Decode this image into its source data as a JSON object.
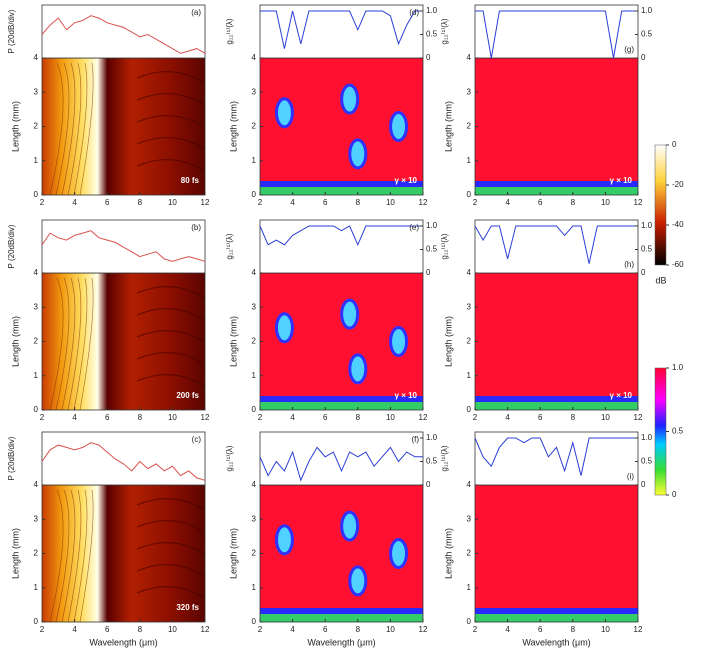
{
  "chart_data": [
    {
      "type": "spectrogram",
      "letter": "(a)",
      "annotation": "80 fs",
      "top_ylabel": "P (20dB/div)",
      "ylabel": "Length (mm)",
      "color": "#d9534f",
      "x": [
        2,
        2.5,
        3,
        3.5,
        4,
        4.5,
        5,
        5.5,
        6,
        6.5,
        7,
        7.5,
        8,
        8.5,
        9,
        9.5,
        10,
        10.5,
        11,
        11.5,
        12
      ],
      "values": [
        0.5,
        0.7,
        0.85,
        0.6,
        0.75,
        0.8,
        0.9,
        0.85,
        0.75,
        0.7,
        0.65,
        0.55,
        0.45,
        0.5,
        0.4,
        0.3,
        0.2,
        0.1,
        0.15,
        0.2,
        0.1
      ],
      "top_ylim": [
        0,
        1
      ],
      "xlim": [
        2,
        12
      ],
      "xticks": [
        2,
        4,
        6,
        8,
        10,
        12
      ],
      "ylim": [
        0,
        4
      ],
      "yticks": [
        0,
        1,
        2,
        3,
        4
      ]
    },
    {
      "type": "coherence",
      "letter": "(d)",
      "annotation": "γ × 10",
      "top_ylabel": "g₁₂⁽¹⁾(λ)",
      "ylabel": "Length (mm)",
      "color": "#2b3fd6",
      "x": [
        2,
        2.5,
        3,
        3.5,
        4,
        4.5,
        5,
        5.5,
        6,
        6.5,
        7,
        7.5,
        8,
        8.5,
        9,
        9.5,
        10,
        10.5,
        11,
        11.5,
        12
      ],
      "values": [
        1,
        1,
        1,
        0.2,
        1,
        0.3,
        1,
        1,
        1,
        1,
        1,
        1,
        0.6,
        1,
        1,
        1,
        0.9,
        0.3,
        0.7,
        1,
        1
      ],
      "top_ylim": [
        0,
        1
      ],
      "top_yticks": [
        0,
        0.5,
        {
          "value": 1,
          "label": "1.0"
        }
      ],
      "xlim": [
        2,
        12
      ],
      "xticks": [
        2,
        4,
        6,
        8,
        10,
        12
      ],
      "ylim": [
        0,
        4
      ],
      "yticks": [
        0,
        1,
        2,
        3,
        4
      ]
    },
    {
      "type": "coherence",
      "letter": "(g)",
      "annotation": "γ × 10",
      "top_ylabel": "g₁₂⁽¹⁾(λ)",
      "ylabel": "Length (mm)",
      "color": "#2b3fd6",
      "x": [
        2,
        2.5,
        3,
        3.5,
        4,
        4.5,
        5,
        5.5,
        6,
        6.5,
        7,
        7.5,
        8,
        8.5,
        9,
        9.5,
        10,
        10.5,
        11,
        11.5,
        12
      ],
      "values": [
        1,
        1,
        0,
        1,
        1,
        1,
        1,
        1,
        1,
        1,
        1,
        1,
        1,
        1,
        1,
        1,
        1,
        0,
        1,
        1,
        1
      ],
      "top_ylim": [
        0,
        1
      ],
      "top_yticks": [
        0,
        0.5,
        {
          "value": 1,
          "label": "1.0"
        }
      ],
      "xlim": [
        2,
        12
      ],
      "xticks": [
        2,
        4,
        6,
        8,
        10,
        12
      ],
      "ylim": [
        0,
        4
      ],
      "yticks": [
        0,
        1,
        2,
        3,
        4
      ]
    },
    {
      "type": "spectrogram",
      "letter": "(b)",
      "annotation": "200 fs",
      "top_ylabel": "P (20dB/div)",
      "ylabel": "Length (mm)",
      "color": "#d9534f",
      "x": [
        2,
        2.5,
        3,
        3.5,
        4,
        4.5,
        5,
        5.5,
        6,
        6.5,
        7,
        7.5,
        8,
        8.5,
        9,
        9.5,
        10,
        10.5,
        11,
        11.5,
        12
      ],
      "values": [
        0.6,
        0.85,
        0.75,
        0.7,
        0.8,
        0.85,
        0.9,
        0.75,
        0.7,
        0.65,
        0.55,
        0.45,
        0.35,
        0.4,
        0.45,
        0.3,
        0.25,
        0.3,
        0.35,
        0.3,
        0.25
      ],
      "top_ylim": [
        0,
        1
      ],
      "xlim": [
        2,
        12
      ],
      "xticks": [
        2,
        4,
        6,
        8,
        10,
        12
      ],
      "ylim": [
        0,
        4
      ],
      "yticks": [
        0,
        1,
        2,
        3,
        4
      ]
    },
    {
      "type": "coherence",
      "letter": "(e)",
      "annotation": "γ × 10",
      "top_ylabel": "g₁₂⁽¹⁾(λ)",
      "ylabel": "Length (mm)",
      "color": "#2b3fd6",
      "x": [
        2,
        2.5,
        3,
        3.5,
        4,
        4.5,
        5,
        5.5,
        6,
        6.5,
        7,
        7.5,
        8,
        8.5,
        9,
        9.5,
        10,
        10.5,
        11,
        11.5,
        12
      ],
      "values": [
        1,
        0.6,
        0.7,
        0.6,
        0.8,
        0.9,
        1,
        1,
        1,
        1,
        0.9,
        1,
        0.6,
        1,
        1,
        1,
        1,
        1,
        1,
        1,
        1
      ],
      "top_ylim": [
        0,
        1
      ],
      "top_yticks": [
        0,
        0.5,
        {
          "value": 1,
          "label": "1.0"
        }
      ],
      "xlim": [
        2,
        12
      ],
      "xticks": [
        2,
        4,
        6,
        8,
        10,
        12
      ],
      "ylim": [
        0,
        4
      ],
      "yticks": [
        0,
        1,
        2,
        3,
        4
      ]
    },
    {
      "type": "coherence",
      "letter": "(h)",
      "annotation": "γ × 10",
      "top_ylabel": "g₁₂⁽¹⁾(λ)",
      "ylabel": "Length (mm)",
      "color": "#2b3fd6",
      "x": [
        2,
        2.5,
        3,
        3.5,
        4,
        4.5,
        5,
        5.5,
        6,
        6.5,
        7,
        7.5,
        8,
        8.5,
        9,
        9.5,
        10,
        10.5,
        11,
        11.5,
        12
      ],
      "values": [
        1,
        0.7,
        1,
        1,
        0.3,
        1,
        1,
        1,
        1,
        1,
        1,
        0.8,
        1,
        1,
        0.2,
        1,
        1,
        1,
        1,
        1,
        1
      ],
      "top_ylim": [
        0,
        1
      ],
      "top_yticks": [
        0,
        0.5,
        {
          "value": 1,
          "label": "1.0"
        }
      ],
      "xlim": [
        2,
        12
      ],
      "xticks": [
        2,
        4,
        6,
        8,
        10,
        12
      ],
      "ylim": [
        0,
        4
      ],
      "yticks": [
        0,
        1,
        2,
        3,
        4
      ]
    },
    {
      "type": "spectrogram",
      "letter": "(c)",
      "annotation": "320 fs",
      "top_ylabel": "P (20dB/div)",
      "ylabel": "Length (mm)",
      "xlabel": "Wavelength (μm)",
      "color": "#d9534f",
      "x": [
        2,
        2.5,
        3,
        3.5,
        4,
        4.5,
        5,
        5.5,
        6,
        6.5,
        7,
        7.5,
        8,
        8.5,
        9,
        9.5,
        10,
        10.5,
        11,
        11.5,
        12
      ],
      "values": [
        0.5,
        0.75,
        0.85,
        0.8,
        0.75,
        0.8,
        0.9,
        0.85,
        0.7,
        0.55,
        0.45,
        0.3,
        0.5,
        0.35,
        0.45,
        0.3,
        0.4,
        0.2,
        0.3,
        0.15,
        0.1
      ],
      "top_ylim": [
        0,
        1
      ],
      "xlim": [
        2,
        12
      ],
      "xticks": [
        2,
        4,
        6,
        8,
        10,
        12
      ],
      "ylim": [
        0,
        4
      ],
      "yticks": [
        0,
        1,
        2,
        3,
        4
      ]
    },
    {
      "type": "coherence",
      "letter": "(f)",
      "top_ylabel": "g₁₂⁽¹⁾(λ)",
      "ylabel": "Length (mm)",
      "xlabel": "Wavelength (μm)",
      "color": "#2b3fd6",
      "x": [
        2,
        2.5,
        3,
        3.5,
        4,
        4.5,
        5,
        5.5,
        6,
        6.5,
        7,
        7.5,
        8,
        8.5,
        9,
        9.5,
        10,
        10.5,
        11,
        11.5,
        12
      ],
      "values": [
        0.6,
        0.2,
        0.5,
        0.3,
        0.7,
        0.1,
        0.5,
        0.8,
        0.6,
        0.7,
        0.3,
        0.7,
        0.6,
        0.7,
        0.4,
        0.6,
        0.8,
        0.5,
        0.7,
        0.6,
        0.6
      ],
      "top_ylim": [
        0,
        1
      ],
      "top_yticks": [
        0,
        0.5,
        {
          "value": 1,
          "label": "1.0"
        }
      ],
      "xlim": [
        2,
        12
      ],
      "xticks": [
        2,
        4,
        6,
        8,
        10,
        12
      ],
      "ylim": [
        0,
        4
      ],
      "yticks": [
        0,
        1,
        2,
        3,
        4
      ]
    },
    {
      "type": "coherence",
      "letter": "(i)",
      "top_ylabel": "g₁₂⁽¹⁾(λ)",
      "ylabel": "Length (mm)",
      "xlabel": "Wavelength (μm)",
      "color": "#2b3fd6",
      "x": [
        2,
        2.5,
        3,
        3.5,
        4,
        4.5,
        5,
        5.5,
        6,
        6.5,
        7,
        7.5,
        8,
        8.5,
        9,
        9.5,
        10,
        10.5,
        11,
        11.5,
        12
      ],
      "values": [
        1,
        0.6,
        0.4,
        0.8,
        1,
        1,
        0.9,
        1,
        1,
        0.6,
        0.8,
        0.3,
        0.9,
        0.2,
        1,
        1,
        1,
        1,
        1,
        1,
        1
      ],
      "top_ylim": [
        0,
        1
      ],
      "top_yticks": [
        0,
        0.5,
        {
          "value": 1,
          "label": "1.0"
        }
      ],
      "xlim": [
        2,
        12
      ],
      "xticks": [
        2,
        4,
        6,
        8,
        10,
        12
      ],
      "ylim": [
        0,
        4
      ],
      "yticks": [
        0,
        1,
        2,
        3,
        4
      ]
    }
  ],
  "colorbars": [
    {
      "label": "dB",
      "lim": [
        -60,
        0
      ],
      "ticks": [
        0,
        -20,
        -40,
        -60
      ]
    },
    {
      "lim": [
        0,
        1
      ],
      "ticks": [
        {
          "value": 1,
          "label": "1.0"
        },
        0.5,
        0
      ]
    }
  ]
}
